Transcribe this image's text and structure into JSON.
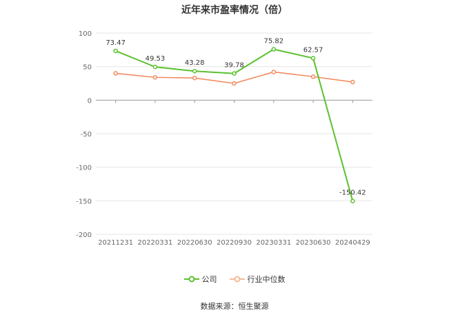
{
  "chart_data": {
    "type": "line",
    "title": "近年来市盈率情况（倍）",
    "categories": [
      "20211231",
      "20220331",
      "20220630",
      "20220930",
      "20230331",
      "20230630",
      "20240429"
    ],
    "ylim": [
      -200,
      100
    ],
    "yticks": [
      "100",
      "50",
      "0",
      "-50",
      "-100",
      "-150",
      "-200"
    ],
    "ytick_values": [
      100,
      50,
      0,
      -50,
      -100,
      -150,
      -200
    ],
    "grid": true,
    "legend_position": "bottom",
    "series": [
      {
        "name": "公司",
        "color": "#5ac12e",
        "values": [
          73.47,
          49.53,
          43.28,
          39.78,
          75.82,
          62.57,
          -150.42
        ],
        "labels": [
          "73.47",
          "49.53",
          "43.28",
          "39.78",
          "75.82",
          "62.57",
          "-150.42"
        ]
      },
      {
        "name": "行业中位数",
        "color": "#f28a5e",
        "values": [
          40,
          34,
          33,
          25,
          42,
          35,
          27
        ]
      }
    ]
  },
  "source_text": "数据来源：恒生聚源"
}
